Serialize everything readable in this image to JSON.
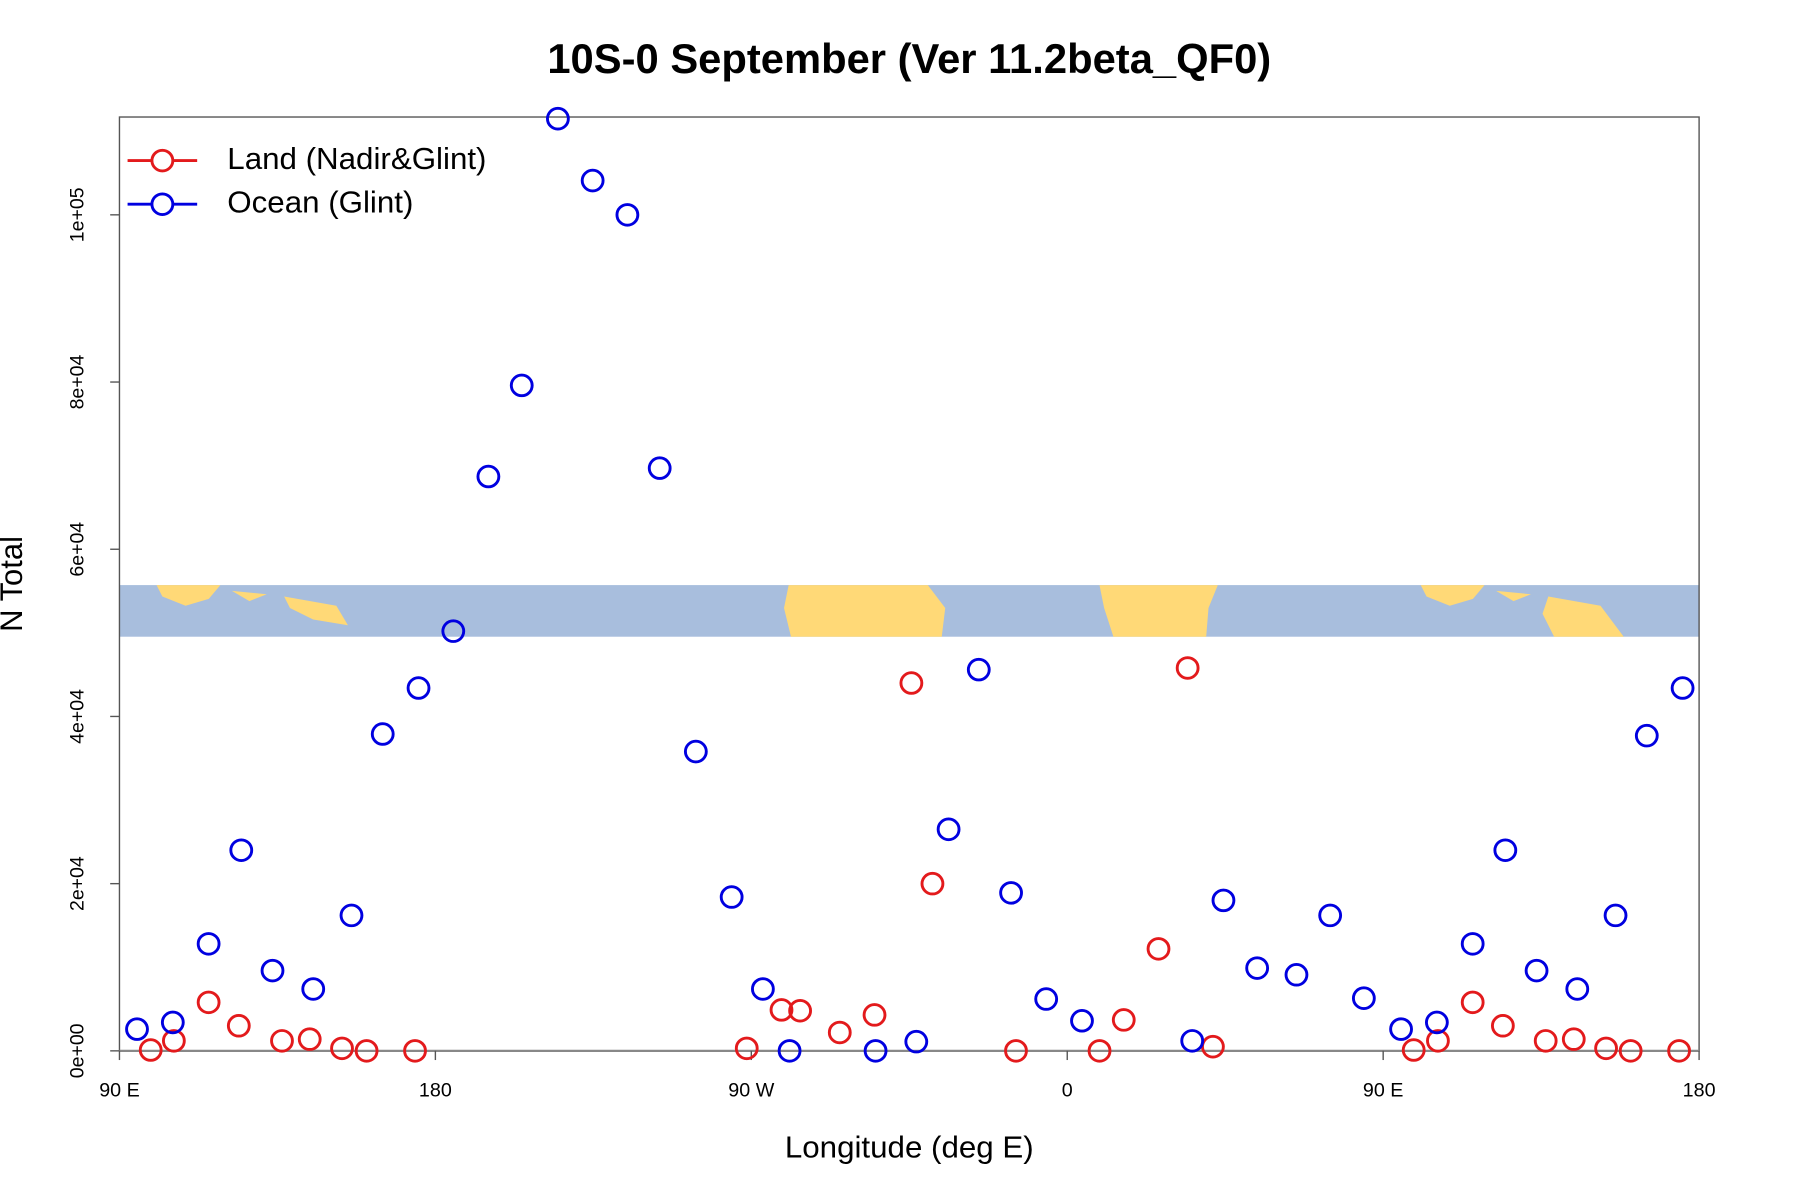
{
  "chart_data": {
    "type": "scatter",
    "title": "10S-0 September (Ver 11.2beta_QF0)",
    "x_label": "Longitude (deg E)",
    "y_label": "N Total",
    "xlim": [
      90,
      540
    ],
    "ylim": [
      0,
      111700
    ],
    "xticks": [
      {
        "value": 90,
        "label": "90 E"
      },
      180,
      {
        "value": 270,
        "label": "90 W"
      },
      {
        "value": 360,
        "label": "0"
      },
      {
        "value": 450,
        "label": "90 E"
      },
      {
        "value": 540,
        "label": "180"
      }
    ],
    "yticks": [
      {
        "value": 0,
        "label": "0e+00"
      },
      {
        "value": 20000,
        "label": "2e+04"
      },
      {
        "value": 40000,
        "label": "4e+04"
      },
      {
        "value": 60000,
        "label": "6e+04"
      },
      {
        "value": 80000,
        "label": "8e+04"
      },
      {
        "value": 100000,
        "label": "1e+05"
      }
    ],
    "legend": "topleft",
    "series": [
      {
        "name": "Land (Nadir&Glint)",
        "color": "#e31a1c",
        "x": [
          98.9,
          105.5,
          115.4,
          124,
          136.3,
          144.2,
          153.4,
          160.4,
          174.2,
          268.7,
          278.6,
          283.9,
          295.2,
          305.1,
          315.6,
          321.6,
          345.4,
          369.2,
          376.1,
          386,
          394.3,
          401.5,
          458.7,
          465.6,
          475.5,
          484.1,
          496.3,
          504.3,
          513.5,
          520.5,
          534.3
        ],
        "values": [
          100,
          1200,
          5800,
          3000,
          1200,
          1400,
          300,
          0,
          0,
          300,
          4900,
          4800,
          2200,
          4300,
          44000,
          20000,
          0,
          0,
          3700,
          12200,
          45800,
          500,
          100,
          1200,
          5800,
          3000,
          1200,
          1400,
          300,
          0,
          0
        ]
      },
      {
        "name": "Ocean (Glint)",
        "color": "#0000e0",
        "x": [
          95,
          105.2,
          115.4,
          124.7,
          133.6,
          145.2,
          156.1,
          165,
          175.2,
          185.1,
          195.1,
          204.6,
          214.9,
          224.8,
          234.7,
          243.9,
          254.2,
          264.4,
          273.3,
          280.9,
          305.4,
          317,
          326.2,
          334.8,
          344,
          354,
          364.2,
          395.6,
          404.5,
          414.1,
          425.3,
          434.9,
          444.5,
          455.1,
          465.3,
          475.5,
          484.8,
          493.7,
          505.3,
          516.2,
          525.1,
          535.3
        ],
        "values": [
          2600,
          3400,
          12800,
          24000,
          9600,
          7400,
          16200,
          37900,
          43400,
          50200,
          68700,
          79600,
          111500,
          104100,
          100000,
          69700,
          35800,
          18400,
          7400,
          0,
          0,
          1100,
          26500,
          45600,
          18900,
          6200,
          3600,
          1200,
          18000,
          9900,
          9100,
          16200,
          6300,
          2600,
          3400,
          12800,
          24000,
          9600,
          7400,
          16200,
          37700,
          43400
        ]
      }
    ]
  }
}
